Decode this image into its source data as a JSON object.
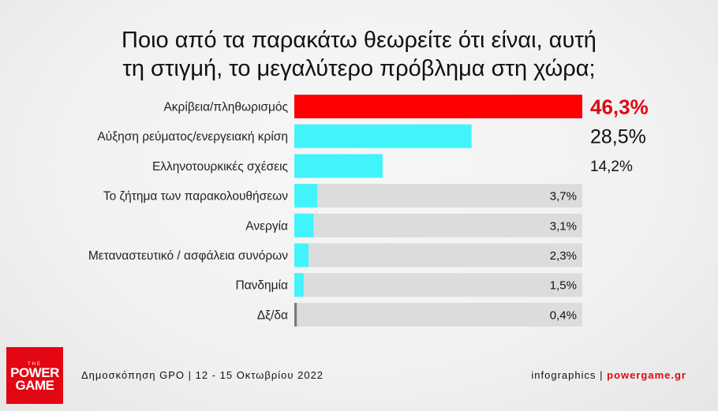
{
  "title": {
    "line1": "Ποιο από τα παρακάτω θεωρείτε ότι είναι, αυτή",
    "line2": "τη στιγμή, το μεγαλύτερο πρόβλημα στη χώρα;"
  },
  "chart_data": {
    "type": "bar",
    "orientation": "horizontal",
    "categories": [
      "Ακρίβεια/πληθωρισμός",
      "Αύξηση ρεύματος/ενεργειακή κρίση",
      "Ελληνοτουρκικές σχέσεις",
      "Το ζήτημα των παρακολουθήσεων",
      "Ανεργία",
      "Μεταναστευτικό / ασφάλεια συνόρων",
      "Πανδημία",
      "Δξ/δα"
    ],
    "values": [
      46.3,
      28.5,
      14.2,
      3.7,
      3.1,
      2.3,
      1.5,
      0.4
    ],
    "value_labels": [
      "46,3%",
      "28,5%",
      "14,2%",
      "3,7%",
      "3,1%",
      "2,3%",
      "1,5%",
      "0,4%"
    ],
    "xlim": [
      0,
      46.3
    ],
    "colors": {
      "top": "#ff0000",
      "bar": "#41f4fb",
      "track": "#dcdcdc",
      "top_label": "#e30613",
      "label": "#111111"
    }
  },
  "footer": {
    "source": "Δημοσκόπηση GPO | 12 - 15 Οκτωβρίου 2022",
    "credit_prefix": "infographics",
    "separator": "|",
    "site": "powergame.gr"
  },
  "logo": {
    "small": "THE",
    "line1": "POWER",
    "line2": "GAME"
  }
}
